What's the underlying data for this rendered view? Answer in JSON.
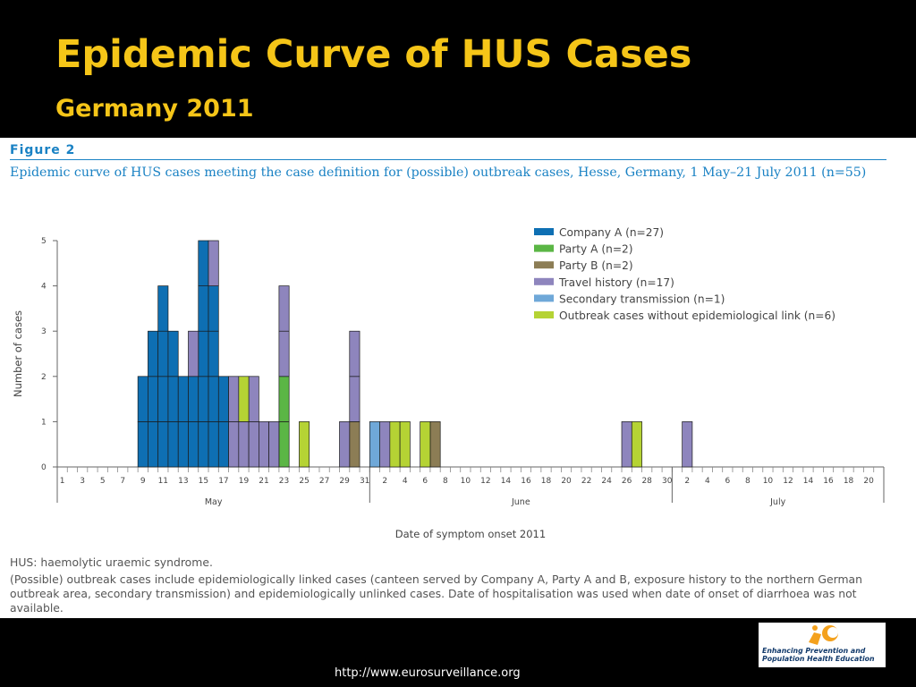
{
  "slide": {
    "title": "Epidemic Curve of HUS Cases",
    "subtitle": "Germany 2011",
    "source_url": "http://www.eurosurveillance.org"
  },
  "figure": {
    "label": "Figure 2",
    "caption": "Epidemic curve of HUS cases meeting the case definition for (possible) outbreak cases, Hesse, Germany, 1 May–21 July 2011 (n=55)",
    "footnote_1": "HUS: haemolytic uraemic syndrome.",
    "footnote_2": "(Possible) outbreak cases include epidemiologically linked cases (canteen served by Company A, Party A and B, exposure history to the northern German outbreak area, secondary transmission) and epidemiologically unlinked cases. Date of hospitalisation was used when date of onset of diarrhoea was not available."
  },
  "logo": {
    "line1": "Enhancing Prevention and",
    "line2": "Population Health Education",
    "icon": "figure-sun-logo-icon"
  },
  "chart_data": {
    "type": "bar",
    "stacked": true,
    "xlabel": "Date of symptom onset 2011",
    "ylabel": "Number of cases",
    "ylim": [
      0,
      5
    ],
    "yticks": [
      0,
      1,
      2,
      3,
      4,
      5
    ],
    "x_range": [
      "2011-05-01",
      "2011-07-21"
    ],
    "x_tick_labels": [
      "1",
      "3",
      "5",
      "7",
      "9",
      "11",
      "13",
      "15",
      "17",
      "19",
      "21",
      "23",
      "25",
      "27",
      "29",
      "31",
      "2",
      "4",
      "6",
      "8",
      "10",
      "12",
      "14",
      "16",
      "18",
      "20",
      "22",
      "24",
      "26",
      "28",
      "30",
      "2",
      "4",
      "6",
      "8",
      "10",
      "12",
      "14",
      "16",
      "18",
      "20"
    ],
    "months": [
      {
        "label": "May",
        "start": "2011-05-01",
        "end": "2011-05-31"
      },
      {
        "label": "June",
        "start": "2011-06-01",
        "end": "2011-06-30"
      },
      {
        "label": "July",
        "start": "2011-07-01",
        "end": "2011-07-21"
      }
    ],
    "legend_position": "top-right",
    "series": [
      {
        "name": "Company A (n=27)",
        "color": "#0e6fb3",
        "points": [
          [
            "2011-05-09",
            2
          ],
          [
            "2011-05-10",
            3
          ],
          [
            "2011-05-11",
            4
          ],
          [
            "2011-05-12",
            3
          ],
          [
            "2011-05-13",
            2
          ],
          [
            "2011-05-14",
            2
          ],
          [
            "2011-05-15",
            5
          ],
          [
            "2011-05-16",
            4
          ],
          [
            "2011-05-17",
            2
          ]
        ]
      },
      {
        "name": "Party A (n=2)",
        "color": "#5bb645",
        "points": [
          [
            "2011-05-23",
            2
          ]
        ]
      },
      {
        "name": "Party B (n=2)",
        "color": "#8c7d55",
        "points": [
          [
            "2011-05-30",
            1
          ],
          [
            "2011-06-07",
            1
          ]
        ]
      },
      {
        "name": "Travel history (n=17)",
        "color": "#8e85bd",
        "points": [
          [
            "2011-05-14",
            1
          ],
          [
            "2011-05-16",
            1
          ],
          [
            "2011-05-18",
            2
          ],
          [
            "2011-05-19",
            1
          ],
          [
            "2011-05-20",
            2
          ],
          [
            "2011-05-21",
            1
          ],
          [
            "2011-05-22",
            1
          ],
          [
            "2011-05-23",
            2
          ],
          [
            "2011-05-29",
            1
          ],
          [
            "2011-05-30",
            2
          ],
          [
            "2011-06-02",
            1
          ],
          [
            "2011-06-26",
            1
          ],
          [
            "2011-07-02",
            1
          ]
        ]
      },
      {
        "name": "Secondary transmission (n=1)",
        "color": "#6fa8d8",
        "points": [
          [
            "2011-06-01",
            1
          ]
        ]
      },
      {
        "name": "Outbreak cases without epidemiological link  (n=6)",
        "color": "#b5d334",
        "points": [
          [
            "2011-05-19",
            1
          ],
          [
            "2011-05-25",
            1
          ],
          [
            "2011-06-03",
            1
          ],
          [
            "2011-06-04",
            1
          ],
          [
            "2011-06-06",
            1
          ],
          [
            "2011-06-27",
            1
          ]
        ]
      }
    ]
  }
}
